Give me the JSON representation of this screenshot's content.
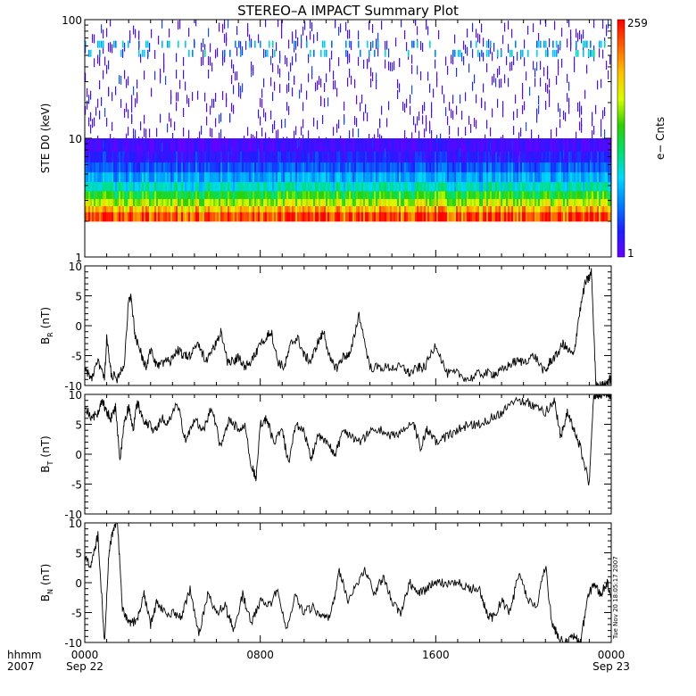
{
  "title": "STEREO–A IMPACT Summary Plot",
  "timestamp": "Tue Nov 20 18:05:17 2007",
  "time_axis": {
    "row1_label": "hhmm",
    "row2_label": "2007",
    "ticks": [
      {
        "hour": 0,
        "time": "0000",
        "date": "Sep 22"
      },
      {
        "hour": 8,
        "time": "0800",
        "date": ""
      },
      {
        "hour": 16,
        "time": "1600",
        "date": ""
      },
      {
        "hour": 24,
        "time": "0000",
        "date": "Sep 23"
      }
    ],
    "minor_step_hours": 1,
    "range_hours": [
      0,
      24
    ]
  },
  "colors": {
    "trace": "#000000",
    "colormap": [
      "#6a00ff",
      "#1e1eff",
      "#0080ff",
      "#00d8ff",
      "#00e070",
      "#30d000",
      "#d8ff00",
      "#ffc000",
      "#ff6000",
      "#ff0000"
    ]
  },
  "chart_data": [
    {
      "type": "heatmap",
      "ylabel": "STE D0 (keV)",
      "yscale": "log",
      "ylim": [
        1,
        100
      ],
      "yticks": [
        "1",
        "10",
        "100"
      ],
      "xlim": [
        0,
        24
      ],
      "colorbar": {
        "label": "e− Cnts",
        "min": "1",
        "max": "259"
      },
      "bands": [
        {
          "energy_keV": [
            2.0,
            2.4
          ],
          "level": 0.92
        },
        {
          "energy_keV": [
            2.4,
            2.7
          ],
          "level": 0.78
        },
        {
          "energy_keV": [
            2.7,
            3.1
          ],
          "level": 0.64
        },
        {
          "energy_keV": [
            3.1,
            3.6
          ],
          "level": 0.52
        },
        {
          "energy_keV": [
            3.6,
            4.3
          ],
          "level": 0.38
        },
        {
          "energy_keV": [
            4.3,
            5.2
          ],
          "level": 0.27
        },
        {
          "energy_keV": [
            5.2,
            6.3
          ],
          "level": 0.17
        },
        {
          "energy_keV": [
            6.3,
            7.8
          ],
          "level": 0.1
        },
        {
          "energy_keV": [
            7.8,
            10.0
          ],
          "level": 0.05
        }
      ],
      "sparse_rows": [
        {
          "energy_keV": 62,
          "level": 0.28
        },
        {
          "energy_keV": 52,
          "level": 0.3
        }
      ]
    },
    {
      "type": "line",
      "ylabel": "B",
      "ylabel_sub": "R",
      "ylabel_unit": "(nT)",
      "ylim": [
        -10,
        10
      ],
      "yticks": [
        "-10",
        "-5",
        "0",
        "5",
        "10"
      ],
      "x": [
        0,
        0.3,
        0.6,
        0.9,
        1.0,
        1.2,
        1.5,
        1.8,
        2.0,
        2.1,
        2.3,
        2.6,
        2.8,
        3.0,
        3.3,
        3.6,
        3.9,
        4.2,
        4.5,
        4.8,
        5.2,
        5.5,
        5.8,
        6.0,
        6.2,
        6.5,
        6.8,
        7.0,
        7.3,
        7.6,
        7.9,
        8.2,
        8.5,
        8.8,
        9.1,
        9.4,
        9.7,
        10.0,
        10.3,
        10.6,
        10.9,
        11.2,
        11.5,
        11.8,
        12.1,
        12.5,
        13.0,
        13.5,
        14.0,
        14.5,
        14.8,
        15.2,
        15.5,
        16.0,
        16.5,
        17.0,
        17.5,
        18.0,
        18.5,
        18.8,
        19.2,
        19.6,
        20.0,
        20.5,
        21.0,
        21.2,
        21.5,
        21.8,
        22.0,
        22.3,
        22.5,
        22.8,
        23.0,
        23.1,
        23.3,
        23.5,
        23.7,
        23.9,
        24.0
      ],
      "values": [
        -7,
        -9,
        -6,
        -9,
        -2,
        -8,
        -9,
        -6,
        4,
        5,
        -2,
        -5,
        -7,
        -4,
        -7,
        -6,
        -6,
        -4,
        -5,
        -5,
        -3,
        -6,
        -4,
        -3,
        -1,
        -6,
        -6,
        -5,
        -7,
        -6,
        -4,
        -2,
        -1,
        -6,
        -7,
        -3,
        -2,
        -5,
        -6,
        -3,
        -1,
        -6,
        -7,
        -5,
        -5,
        2,
        -7,
        -7,
        -7,
        -7,
        -8,
        -7,
        -7,
        -3,
        -8,
        -8,
        -9,
        -8,
        -8,
        -8,
        -7,
        -6,
        -6,
        -5,
        -8,
        -6,
        -5,
        -3,
        -4,
        -5,
        1,
        7,
        8,
        9,
        -10,
        -10,
        -10,
        -9,
        -9
      ]
    },
    {
      "type": "line",
      "ylabel": "B",
      "ylabel_sub": "T",
      "ylabel_unit": "(nT)",
      "ylim": [
        -10,
        10
      ],
      "yticks": [
        "-10",
        "-5",
        "0",
        "5",
        "10"
      ],
      "x": [
        0,
        0.3,
        0.6,
        0.8,
        1.0,
        1.2,
        1.4,
        1.6,
        1.8,
        2.0,
        2.2,
        2.4,
        2.6,
        2.9,
        3.2,
        3.5,
        3.8,
        4.2,
        4.6,
        5.0,
        5.4,
        5.8,
        6.2,
        6.6,
        7.0,
        7.3,
        7.6,
        7.8,
        8.0,
        8.3,
        8.6,
        9.0,
        9.3,
        9.6,
        10.0,
        10.3,
        10.6,
        11.0,
        11.4,
        11.8,
        12.2,
        12.6,
        13.0,
        13.5,
        14.0,
        14.5,
        15.0,
        15.3,
        15.6,
        16.0,
        16.5,
        17.0,
        17.5,
        18.0,
        18.5,
        19.0,
        19.5,
        20.0,
        20.5,
        21.0,
        21.4,
        21.7,
        22.0,
        22.3,
        22.6,
        23.0,
        23.2,
        23.4,
        23.6,
        23.8,
        24.0
      ],
      "values": [
        8,
        6,
        7,
        9,
        7,
        6,
        8,
        -1,
        5,
        8,
        4,
        9,
        6,
        5,
        4,
        6,
        5,
        9,
        2,
        6,
        4,
        8,
        1,
        6,
        4,
        5,
        -2,
        -4,
        5,
        6,
        2,
        4,
        -2,
        5,
        4,
        -1,
        3,
        2,
        0,
        4,
        3,
        2,
        4,
        4,
        3,
        4,
        5,
        1,
        4,
        2,
        3,
        4,
        5,
        5,
        6,
        7,
        9,
        9,
        8,
        7,
        9,
        3,
        7,
        4,
        1,
        -5,
        10,
        10,
        10,
        10,
        10
      ]
    },
    {
      "type": "line",
      "ylabel": "B",
      "ylabel_sub": "N",
      "ylabel_unit": "(nT)",
      "ylim": [
        -10,
        10
      ],
      "yticks": [
        "-10",
        "-5",
        "0",
        "5",
        "10"
      ],
      "x": [
        0,
        0.3,
        0.6,
        0.9,
        1.1,
        1.3,
        1.5,
        1.7,
        1.9,
        2.1,
        2.4,
        2.7,
        3.0,
        3.3,
        3.6,
        4.0,
        4.4,
        4.8,
        5.2,
        5.6,
        6.0,
        6.4,
        6.8,
        7.2,
        7.6,
        8.0,
        8.4,
        8.8,
        9.2,
        9.6,
        10.0,
        10.4,
        10.8,
        11.2,
        11.6,
        12.0,
        12.4,
        12.8,
        13.2,
        13.6,
        14.0,
        14.4,
        14.8,
        15.2,
        15.6,
        16.0,
        16.5,
        17.0,
        17.5,
        18.0,
        18.3,
        18.6,
        19.0,
        19.4,
        19.8,
        20.2,
        20.6,
        21.0,
        21.3,
        21.6,
        22.0,
        22.3,
        22.6,
        22.9,
        23.2,
        23.5,
        23.8,
        24.0
      ],
      "values": [
        4,
        3,
        8,
        -10,
        5,
        9,
        10,
        -4,
        -6,
        -7,
        -6,
        -2,
        -7,
        -3,
        -5,
        -5,
        -6,
        -1,
        -9,
        -2,
        -5,
        -4,
        -8,
        -2,
        -7,
        -3,
        -4,
        -1,
        -8,
        -2,
        -5,
        -4,
        -6,
        -6,
        2,
        -3,
        0,
        2,
        -2,
        1,
        -3,
        -5,
        0,
        -2,
        -1,
        0,
        0,
        0,
        -1,
        -1,
        -5,
        -6,
        -3,
        -5,
        2,
        -3,
        -4,
        3,
        -7,
        -9,
        -10,
        -9,
        -10,
        -3,
        0,
        -2,
        0,
        -2
      ]
    }
  ]
}
